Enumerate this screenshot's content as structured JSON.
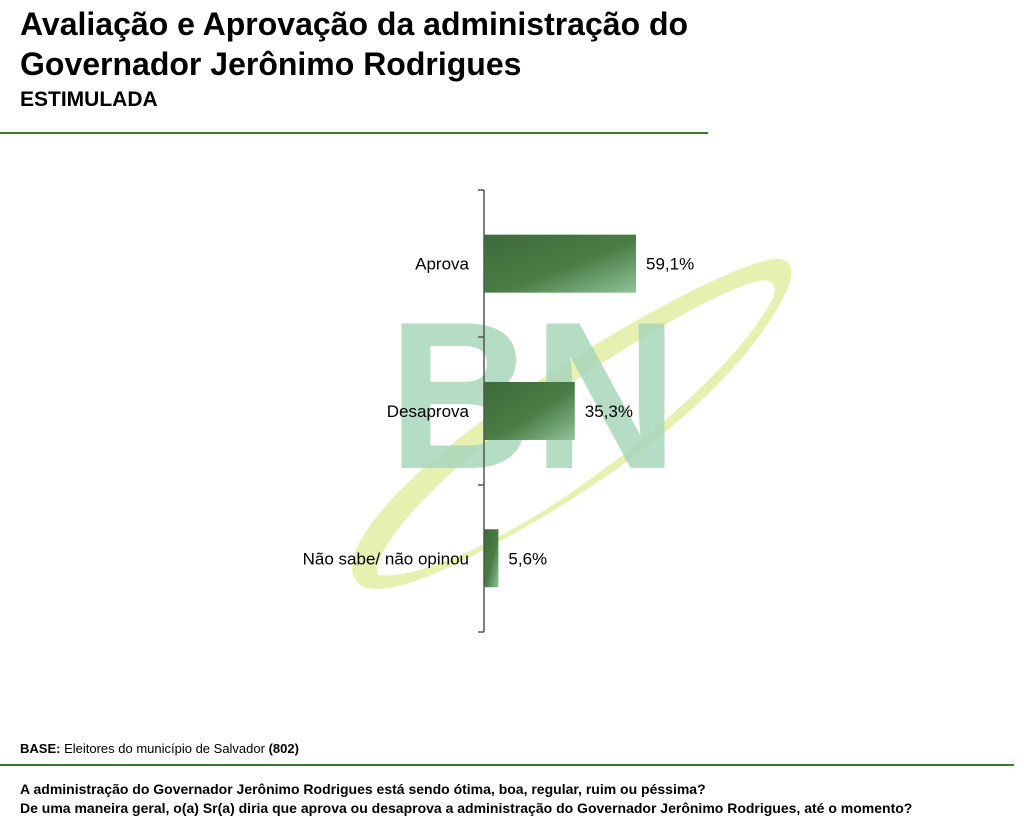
{
  "title": "Avaliação e Aprovação da administração do Governador Jerônimo Rodrigues",
  "subtitle": "ESTIMULADA",
  "watermark": "BN",
  "colors": {
    "bar_dark": "#3d6b3a",
    "bar_light": "#8fc39a",
    "rule": "#3a7a2a",
    "watermark_letters": "#a9d6bb",
    "watermark_swoosh": "#e6f0b0"
  },
  "chart_data": {
    "type": "bar",
    "orientation": "horizontal",
    "categories": [
      "Aprova",
      "Desaprova",
      "Não sabe/ não opinou"
    ],
    "values": [
      59.1,
      35.3,
      5.6
    ],
    "value_labels": [
      "59,1%",
      "35,3%",
      "5,6%"
    ],
    "xlim": [
      0,
      100
    ],
    "grid": false
  },
  "footer": {
    "base_label": "BASE:",
    "base_text": " Eleitores do município de Salvador ",
    "base_count": "(802)",
    "question_1": "A administração do Governador Jerônimo Rodrigues está sendo ótima, boa, regular, ruim ou péssima?",
    "question_2": "De uma maneira geral, o(a) Sr(a) diria que aprova ou desaprova a administração do Governador Jerônimo Rodrigues, até o momento?"
  }
}
